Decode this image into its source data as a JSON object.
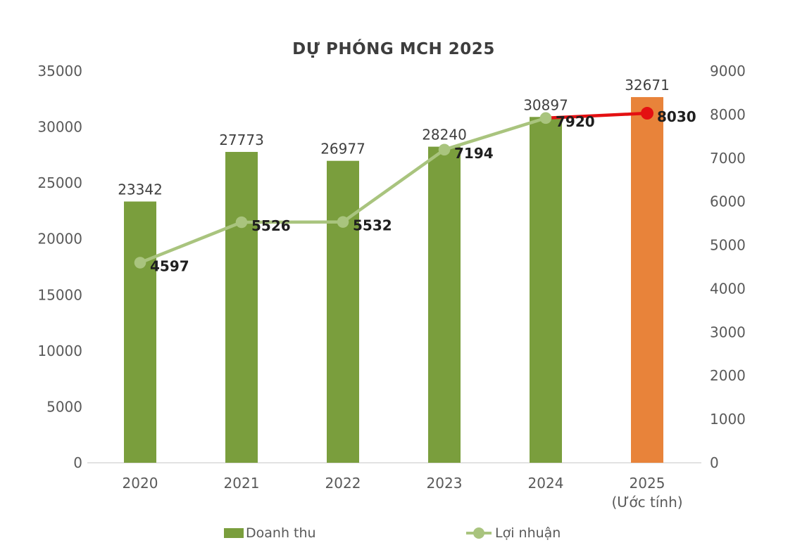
{
  "chart_data": {
    "type": "combo",
    "title": "DỰ PHÓNG MCH 2025",
    "categories": [
      "2020",
      "2021",
      "2022",
      "2023",
      "2024",
      "2025"
    ],
    "category_sublabels": [
      "",
      "",
      "",
      "",
      "",
      "(Ước tính)"
    ],
    "series": [
      {
        "name": "Doanh thu",
        "type": "bar",
        "axis": "left",
        "values": [
          23342,
          27773,
          26977,
          28240,
          30897,
          32671
        ],
        "colors": [
          "#7a9e3d",
          "#7a9e3d",
          "#7a9e3d",
          "#7a9e3d",
          "#7a9e3d",
          "#e8833a"
        ]
      },
      {
        "name": "Lợi nhuận",
        "type": "line",
        "axis": "right",
        "values": [
          4597,
          5526,
          5532,
          7194,
          7920,
          8030
        ],
        "line_color": "#a9c47e",
        "last_segment_color": "#e41012",
        "marker_colors": [
          "#a9c47e",
          "#a9c47e",
          "#a9c47e",
          "#a9c47e",
          "#a9c47e",
          "#e41012"
        ]
      }
    ],
    "axes": {
      "left": {
        "min": 0,
        "max": 35000,
        "step": 5000
      },
      "right": {
        "min": 0,
        "max": 9000,
        "step": 1000
      }
    },
    "legend": [
      {
        "label": "Doanh thu",
        "type": "bar",
        "color": "#7a9e3d"
      },
      {
        "label": "Lợi nhuận",
        "type": "line",
        "color": "#a9c47e"
      }
    ],
    "style_colors": {
      "baseline": "#d9d9d9",
      "axis_text": "#595959",
      "bar_label": "#3f3f3f",
      "line_label": "#1f1f1f",
      "title": "#3d3d3d"
    },
    "grid": false,
    "legend_position": "bottom"
  }
}
